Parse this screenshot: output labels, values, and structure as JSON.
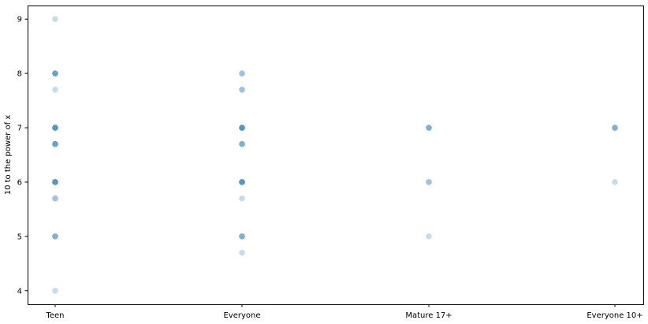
{
  "chart_data": {
    "type": "scatter",
    "title": "",
    "xlabel": "",
    "ylabel": "10 to the power of x",
    "categories": [
      "Teen",
      "Everyone",
      "Mature 17+",
      "Everyone 10+"
    ],
    "ylim": [
      3.75,
      9.25
    ],
    "yticks": [
      4,
      5,
      6,
      7,
      8,
      9
    ],
    "grid": false,
    "legend": "none",
    "marker_color": "#1f77b4",
    "marker_alpha": 0.25,
    "points": [
      {
        "x": "Teen",
        "y": 9.0
      },
      {
        "x": "Teen",
        "y": 8.0
      },
      {
        "x": "Teen",
        "y": 8.0
      },
      {
        "x": "Teen",
        "y": 8.0
      },
      {
        "x": "Teen",
        "y": 8.0
      },
      {
        "x": "Teen",
        "y": 7.7
      },
      {
        "x": "Teen",
        "y": 7.0
      },
      {
        "x": "Teen",
        "y": 7.0
      },
      {
        "x": "Teen",
        "y": 7.0
      },
      {
        "x": "Teen",
        "y": 7.0
      },
      {
        "x": "Teen",
        "y": 7.0
      },
      {
        "x": "Teen",
        "y": 6.7
      },
      {
        "x": "Teen",
        "y": 6.7
      },
      {
        "x": "Teen",
        "y": 6.7
      },
      {
        "x": "Teen",
        "y": 6.7
      },
      {
        "x": "Teen",
        "y": 6.0
      },
      {
        "x": "Teen",
        "y": 6.0
      },
      {
        "x": "Teen",
        "y": 6.0
      },
      {
        "x": "Teen",
        "y": 6.0
      },
      {
        "x": "Teen",
        "y": 6.0
      },
      {
        "x": "Teen",
        "y": 5.7
      },
      {
        "x": "Teen",
        "y": 5.7
      },
      {
        "x": "Teen",
        "y": 5.0
      },
      {
        "x": "Teen",
        "y": 5.0
      },
      {
        "x": "Teen",
        "y": 5.0
      },
      {
        "x": "Teen",
        "y": 4.0
      },
      {
        "x": "Everyone",
        "y": 8.0
      },
      {
        "x": "Everyone",
        "y": 8.0
      },
      {
        "x": "Everyone",
        "y": 7.7
      },
      {
        "x": "Everyone",
        "y": 7.7
      },
      {
        "x": "Everyone",
        "y": 7.0
      },
      {
        "x": "Everyone",
        "y": 7.0
      },
      {
        "x": "Everyone",
        "y": 7.0
      },
      {
        "x": "Everyone",
        "y": 7.0
      },
      {
        "x": "Everyone",
        "y": 7.0
      },
      {
        "x": "Everyone",
        "y": 6.7
      },
      {
        "x": "Everyone",
        "y": 6.7
      },
      {
        "x": "Everyone",
        "y": 6.7
      },
      {
        "x": "Everyone",
        "y": 6.0
      },
      {
        "x": "Everyone",
        "y": 6.0
      },
      {
        "x": "Everyone",
        "y": 6.0
      },
      {
        "x": "Everyone",
        "y": 6.0
      },
      {
        "x": "Everyone",
        "y": 6.0
      },
      {
        "x": "Everyone",
        "y": 5.7
      },
      {
        "x": "Everyone",
        "y": 5.0
      },
      {
        "x": "Everyone",
        "y": 5.0
      },
      {
        "x": "Everyone",
        "y": 5.0
      },
      {
        "x": "Everyone",
        "y": 4.7
      },
      {
        "x": "Mature 17+",
        "y": 7.0
      },
      {
        "x": "Mature 17+",
        "y": 7.0
      },
      {
        "x": "Mature 17+",
        "y": 7.0
      },
      {
        "x": "Mature 17+",
        "y": 6.0
      },
      {
        "x": "Mature 17+",
        "y": 6.0
      },
      {
        "x": "Mature 17+",
        "y": 5.0
      },
      {
        "x": "Everyone 10+",
        "y": 7.0
      },
      {
        "x": "Everyone 10+",
        "y": 7.0
      },
      {
        "x": "Everyone 10+",
        "y": 7.0
      },
      {
        "x": "Everyone 10+",
        "y": 6.0
      }
    ]
  }
}
